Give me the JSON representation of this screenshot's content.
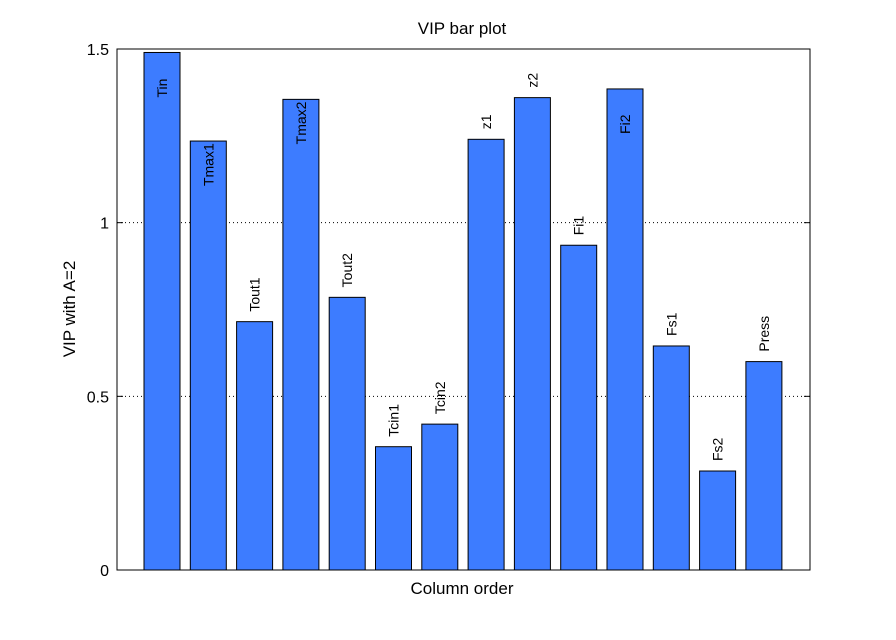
{
  "chart_data": {
    "type": "bar",
    "title": "VIP bar plot",
    "xlabel": "Column order",
    "ylabel": "VIP with A=2",
    "ylim": [
      0,
      1.5
    ],
    "yticks": [
      0,
      0.5,
      1,
      1.5
    ],
    "ytick_labels": [
      "0",
      "0.5",
      "1",
      "1.5"
    ],
    "grid": "horizontal dotted",
    "bar_color": "#3d7cff",
    "categories": [
      "Tin",
      "Tmax1",
      "Tout1",
      "Tmax2",
      "Tout2",
      "Tcin1",
      "Tcin2",
      "z1",
      "z2",
      "Fi1",
      "Fi2",
      "Fs1",
      "Fs2",
      "Press"
    ],
    "values": [
      1.49,
      1.235,
      0.715,
      1.355,
      0.785,
      0.355,
      0.42,
      1.24,
      1.36,
      0.935,
      1.385,
      0.645,
      0.285,
      0.6
    ],
    "label_placement": [
      "inside",
      "inside",
      "above",
      "inside",
      "above",
      "above",
      "above",
      "above",
      "above",
      "above",
      "inside",
      "above",
      "above",
      "above"
    ]
  }
}
